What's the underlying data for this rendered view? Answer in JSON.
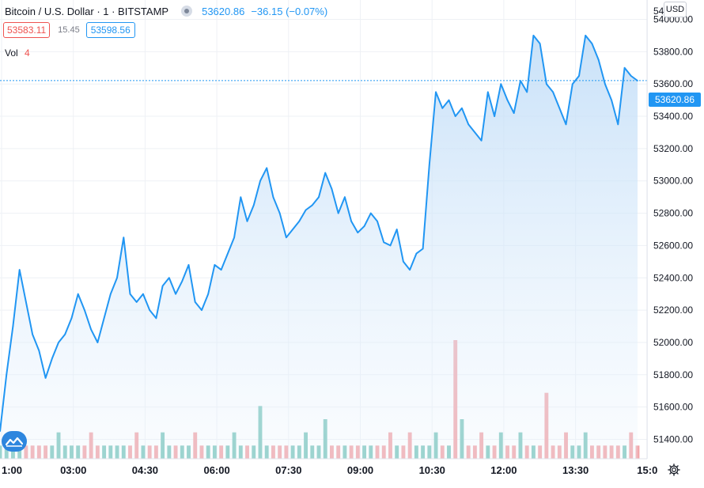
{
  "header": {
    "symbol_title": "Bitcoin / U.S. Dollar · 1 · BITSTAMP",
    "last_price": "53620.86",
    "change": "−36.15 (−0.07%)",
    "bid": "53583.11",
    "spread": "15.45",
    "ask": "53598.56",
    "volume_label": "Vol",
    "volume_value": "4",
    "currency": "USD",
    "last_price_tag": "53620.86"
  },
  "colors": {
    "line": "#2196f3",
    "area_top": "#bfdcf7",
    "grid": "#eef1f5",
    "volume_up": "#82c9c0",
    "volume_down": "#f2a8ac"
  },
  "icons": {
    "status": "status-dot-icon",
    "logo": "tradingview-logo-icon",
    "settings": "gear-icon"
  },
  "chart_data": {
    "type": "line",
    "series": [
      {
        "values": [
          51450,
          51800,
          52100,
          52450,
          52250,
          52050,
          51950,
          51780,
          51900,
          52000,
          52050,
          52150,
          52300,
          52200,
          52080,
          52000,
          52150,
          52300,
          52400,
          52650,
          52300,
          52250,
          52300,
          52200,
          52150,
          52350,
          52400,
          52300,
          52380,
          52480,
          52250,
          52200,
          52300,
          52480,
          52450,
          52550,
          52650,
          52900,
          52750,
          52850,
          53000,
          53080,
          52900,
          52800,
          52650,
          52700,
          52750,
          52820,
          52850,
          52900,
          53050,
          52950,
          52800,
          52900,
          52750,
          52680,
          52720,
          52800,
          52750,
          52620,
          52600,
          52700,
          52500,
          52450,
          52550,
          52580,
          53100,
          53550,
          53450,
          53500,
          53400,
          53450,
          53350,
          53300,
          53250,
          53550,
          53400,
          53600,
          53500,
          53420,
          53620,
          53550,
          53900,
          53850,
          53600,
          53550,
          53450,
          53350,
          53600,
          53650,
          53900,
          53850,
          53750,
          53600,
          53500,
          53350,
          53700,
          53650,
          53620
        ]
      }
    ],
    "x_ticks": [
      "1:00",
      "03:00",
      "04:30",
      "06:00",
      "07:30",
      "09:00",
      "10:30",
      "12:00",
      "13:30",
      "15:0"
    ],
    "y_ticks": [
      51400,
      51600,
      51800,
      52000,
      52200,
      52400,
      52600,
      52800,
      53000,
      53200,
      53400,
      53600,
      53800,
      54000
    ],
    "y_ticks_labels": [
      "51400.00",
      "51600.00",
      "51800.00",
      "52000.00",
      "52200.00",
      "52400.00",
      "52600.00",
      "52800.00",
      "53000.00",
      "53200.00",
      "53400.00",
      "53600.00",
      "53800.00",
      "54000.00"
    ],
    "y_top_label": "54",
    "ylim": [
      51280,
      54120
    ],
    "last_value": 53620.86,
    "grid": true,
    "volume": [
      1,
      1,
      1,
      2,
      1,
      1,
      1,
      1,
      1,
      2,
      1,
      1,
      1,
      1,
      2,
      1,
      1,
      1,
      1,
      1,
      1,
      2,
      1,
      1,
      1,
      2,
      1,
      1,
      1,
      1,
      2,
      1,
      1,
      1,
      1,
      1,
      2,
      1,
      1,
      1,
      4,
      1,
      1,
      1,
      1,
      1,
      1,
      2,
      1,
      1,
      3,
      1,
      1,
      1,
      1,
      1,
      1,
      1,
      1,
      1,
      2,
      1,
      1,
      2,
      1,
      1,
      1,
      2,
      1,
      1,
      9,
      3,
      1,
      1,
      2,
      1,
      1,
      2,
      1,
      1,
      2,
      1,
      1,
      1,
      5,
      1,
      1,
      2,
      1,
      1,
      2,
      1,
      1,
      1,
      1,
      1,
      1,
      2,
      1
    ]
  }
}
